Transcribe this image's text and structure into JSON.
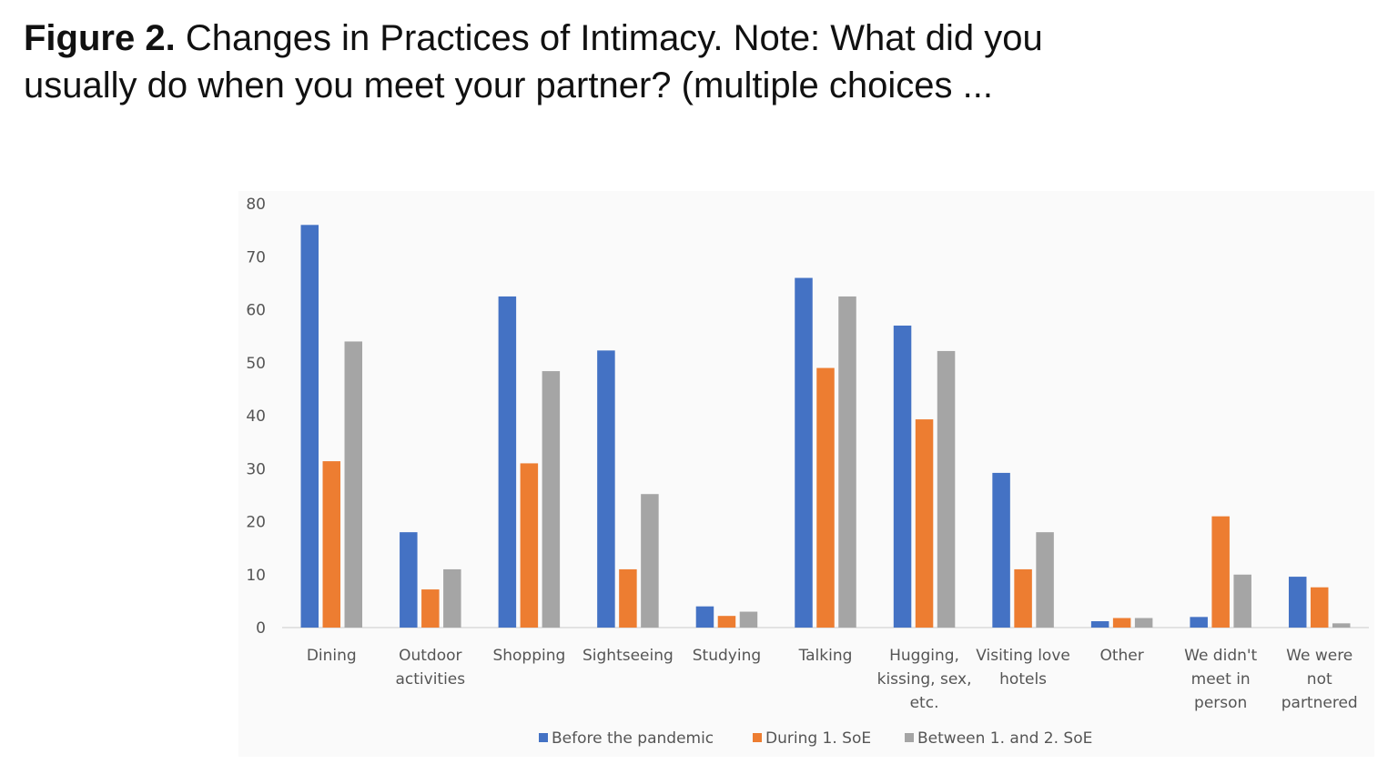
{
  "figure": {
    "label": "Figure 2.",
    "caption": "Changes in Practices of Intimacy. Note: What did you",
    "caption_line2": "usually do when you meet your partner? (multiple choices ..."
  },
  "chart_data": {
    "type": "bar",
    "categories": [
      [
        "Dining"
      ],
      [
        "Outdoor",
        "activities"
      ],
      [
        "Shopping"
      ],
      [
        "Sightseeing"
      ],
      [
        "Studying"
      ],
      [
        "Talking"
      ],
      [
        "Hugging,",
        "kissing, sex,",
        "etc."
      ],
      [
        "Visiting love",
        "hotels"
      ],
      [
        "Other"
      ],
      [
        "We didn't",
        "meet in",
        "person"
      ],
      [
        "We were",
        "not",
        "partnered"
      ]
    ],
    "series": [
      {
        "name": "Before the pandemic",
        "color": "#4472c4",
        "values": [
          76,
          18,
          62.5,
          52.3,
          4,
          66,
          57,
          29.2,
          1.2,
          2,
          9.6
        ]
      },
      {
        "name": "During 1. SoE",
        "color": "#ed7d31",
        "values": [
          31.4,
          7.2,
          31,
          11,
          2.2,
          49,
          39.3,
          11,
          1.8,
          21,
          7.6
        ]
      },
      {
        "name": "Between 1. and 2. SoE",
        "color": "#a5a5a5",
        "values": [
          54,
          11,
          48.4,
          25.2,
          3,
          62.5,
          52.2,
          18,
          1.8,
          10,
          0.8
        ]
      }
    ],
    "yticks": [
      "0",
      "10",
      "20",
      "30",
      "40",
      "50",
      "60",
      "70",
      "80"
    ],
    "ylim": [
      0,
      80
    ],
    "grid": false,
    "legend_position": "bottom"
  }
}
